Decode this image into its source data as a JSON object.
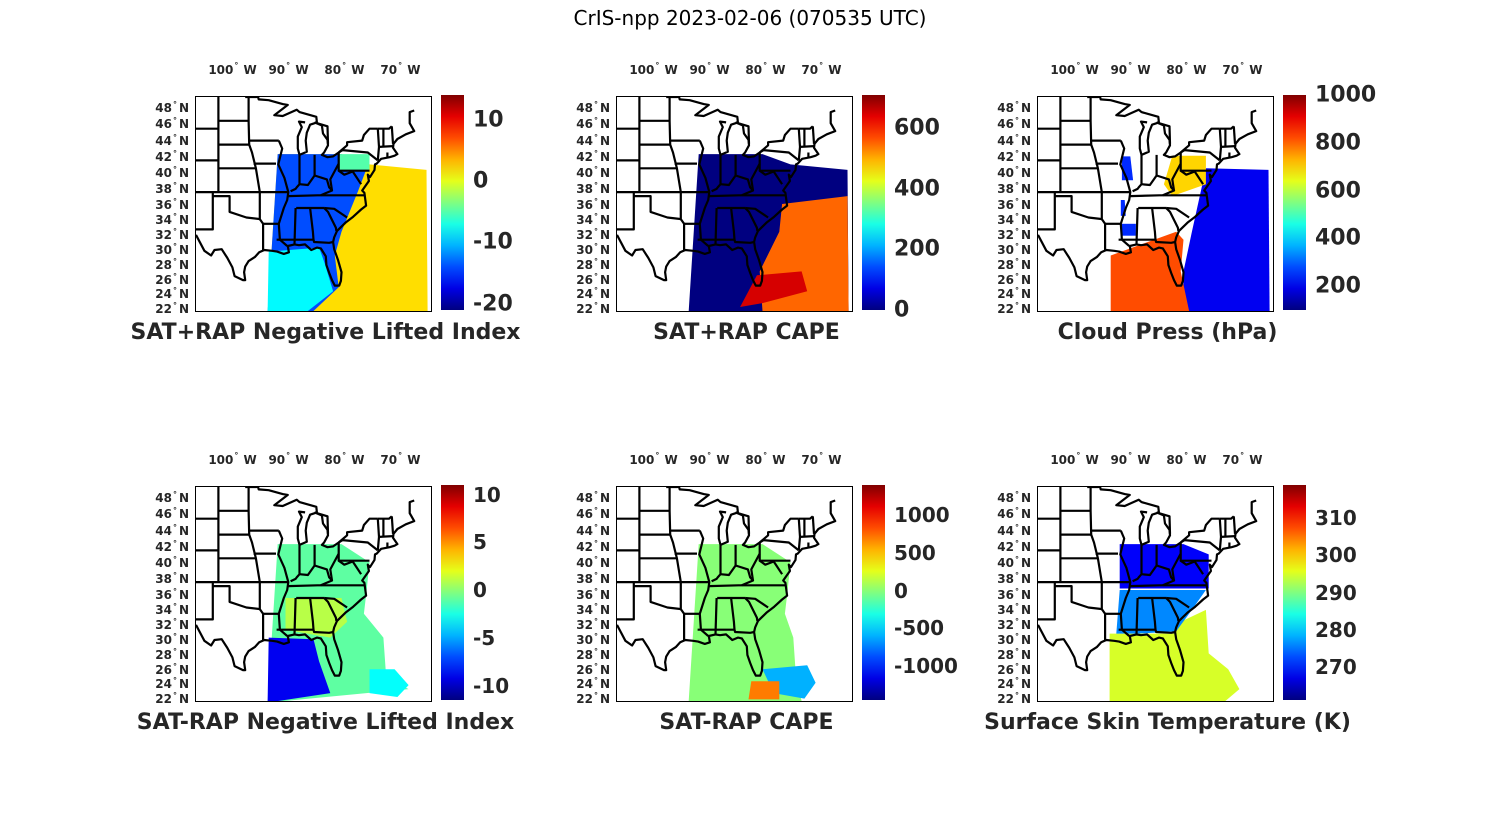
{
  "title": "CrIS-npp 2023-02-06 (070535 UTC)",
  "lon_labels": [
    "100",
    "90",
    "80",
    "70"
  ],
  "lon_suffix": "W",
  "lat_labels": [
    "48",
    "46",
    "44",
    "42",
    "40",
    "38",
    "36",
    "34",
    "32",
    "30",
    "28",
    "26",
    "24",
    "22"
  ],
  "lat_suffix": "N",
  "degree_symbol": "°",
  "colormap": "jet",
  "chart_data": [
    {
      "type": "heatmap",
      "title": "SAT+RAP Negative Lifted Index",
      "xlabel": "",
      "ylabel": "",
      "xlim": [
        -106,
        -64
      ],
      "ylim": [
        22,
        49
      ],
      "colorbar": {
        "range": [
          -21,
          14
        ],
        "ticks": [
          "10",
          "0",
          "-10",
          "-20"
        ],
        "tick_values": [
          10,
          0,
          -10,
          -20
        ]
      },
      "field_summary": {
        "land_east_us": -14,
        "atlantic_offshore": 2,
        "gulf_of_mexico": -8,
        "pennsylvania": -5
      }
    },
    {
      "type": "heatmap",
      "title": "SAT+RAP CAPE",
      "xlabel": "",
      "ylabel": "",
      "xlim": [
        -106,
        -64
      ],
      "ylim": [
        22,
        49
      ],
      "colorbar": {
        "range": [
          0,
          710
        ],
        "ticks": [
          "600",
          "400",
          "200",
          "0"
        ],
        "tick_values": [
          600,
          400,
          200,
          0
        ]
      },
      "field_summary": {
        "land_east_us": 0,
        "gulf_of_mexico": 0,
        "atlantic_south_offshore": 550,
        "florida_straits": 650
      }
    },
    {
      "type": "heatmap",
      "title": "Cloud Press (hPa)",
      "xlabel": "",
      "ylabel": "",
      "xlim": [
        -106,
        -64
      ],
      "ylim": [
        22,
        49
      ],
      "colorbar": {
        "range": [
          100,
          1000
        ],
        "ticks": [
          "1000",
          "800",
          "600",
          "400",
          "200"
        ],
        "tick_values": [
          1000,
          800,
          600,
          400,
          200
        ]
      },
      "field_summary": {
        "atlantic_offshore": 200,
        "gulf_and_florida": 820,
        "mid_atlantic": 700,
        "illinois": 250
      }
    },
    {
      "type": "heatmap",
      "title": "SAT-RAP Negative Lifted Index",
      "xlabel": "",
      "ylabel": "",
      "xlim": [
        -106,
        -64
      ],
      "ylim": [
        22,
        49
      ],
      "colorbar": {
        "range": [
          -11.5,
          11
        ],
        "ticks": [
          "10",
          "5",
          "0",
          "-5",
          "-10"
        ],
        "tick_values": [
          10,
          5,
          0,
          -5,
          -10
        ]
      },
      "field_summary": {
        "land_east_us": -1,
        "southeast": 1,
        "gulf_of_mexico": -9,
        "atlantic_offshore": -3
      }
    },
    {
      "type": "heatmap",
      "title": "SAT-RAP CAPE",
      "xlabel": "",
      "ylabel": "",
      "xlim": [
        -106,
        -64
      ],
      "ylim": [
        22,
        49
      ],
      "colorbar": {
        "range": [
          -1450,
          1400
        ],
        "ticks": [
          "1000",
          "500",
          "0",
          "-500",
          "-1000"
        ],
        "tick_values": [
          1000,
          500,
          0,
          -500,
          -1000
        ]
      },
      "field_summary": {
        "land_east_us": 0,
        "gulf_of_mexico": 0,
        "bahamas_offshore": -600,
        "florida_straits": 700
      }
    },
    {
      "type": "heatmap",
      "title": "Surface Skin Temperature (K)",
      "xlabel": "",
      "ylabel": "",
      "xlim": [
        -106,
        -64
      ],
      "ylim": [
        22,
        49
      ],
      "colorbar": {
        "range": [
          261,
          319
        ],
        "ticks": [
          "310",
          "300",
          "290",
          "280",
          "270"
        ],
        "tick_values": [
          310,
          300,
          290,
          280,
          270
        ]
      },
      "field_summary": {
        "ohio_valley": 268,
        "southeast": 276,
        "gulf_of_mexico": 295,
        "atlantic_offshore": 294
      }
    }
  ]
}
